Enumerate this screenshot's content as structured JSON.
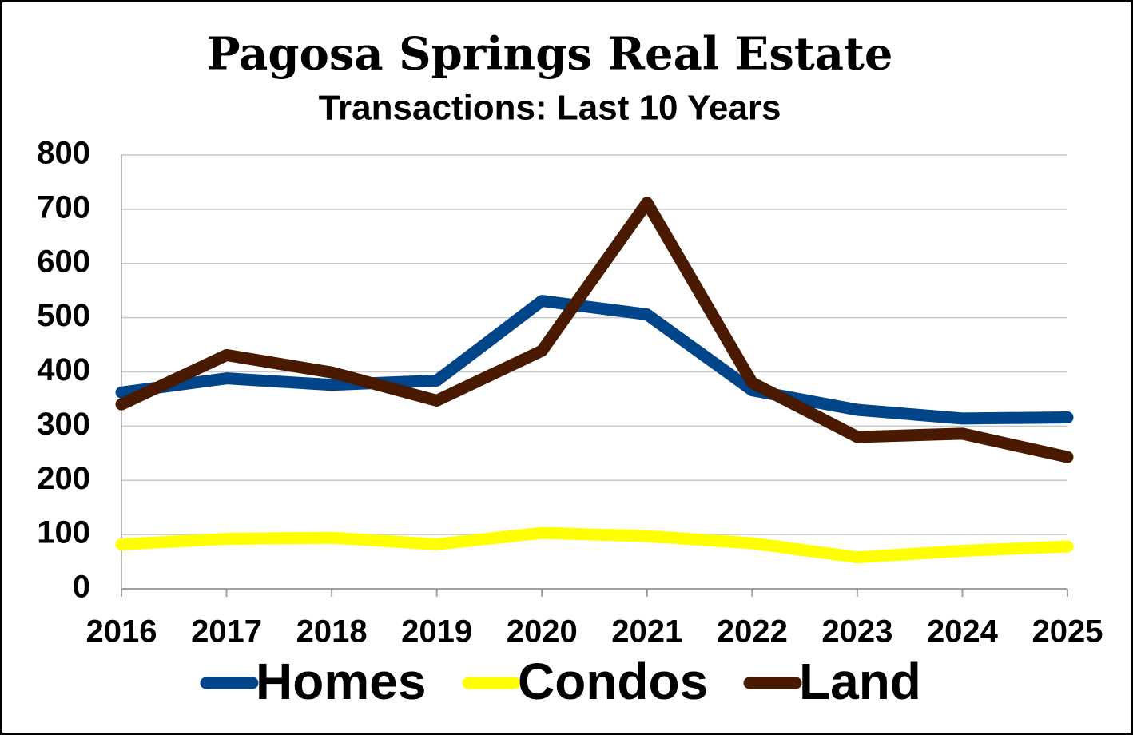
{
  "chart_data": {
    "type": "line",
    "title": "Pagosa Springs Real Estate",
    "subtitle": "Transactions: Last 10 Years",
    "categories": [
      "2016",
      "2017",
      "2018",
      "2019",
      "2020",
      "2021",
      "2022",
      "2023",
      "2024",
      "2025"
    ],
    "series": [
      {
        "name": "Homes",
        "color": "#004489",
        "values": [
          362,
          388,
          376,
          384,
          531,
          506,
          366,
          330,
          314,
          316
        ]
      },
      {
        "name": "Condos",
        "color": "#ffff00",
        "values": [
          82,
          92,
          94,
          82,
          103,
          97,
          84,
          58,
          70,
          78
        ]
      },
      {
        "name": "Land",
        "color": "#4a1a00",
        "values": [
          340,
          431,
          399,
          347,
          439,
          712,
          380,
          280,
          286,
          243
        ]
      }
    ],
    "ylim": [
      0,
      800
    ],
    "yticks": [
      0,
      100,
      200,
      300,
      400,
      500,
      600,
      700,
      800
    ],
    "grid": true,
    "legend": "bottom"
  }
}
